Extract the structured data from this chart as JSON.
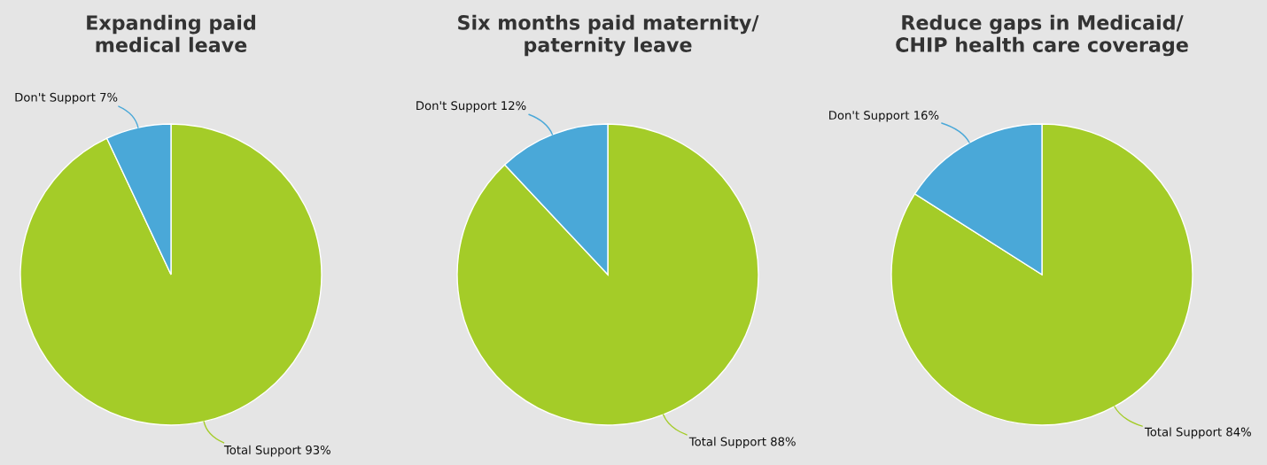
{
  "chart_data": [
    {
      "type": "pie",
      "title": "Expanding paid\nmedical leave",
      "categories": [
        "Total Support",
        "Don't Support"
      ],
      "values": [
        93,
        7
      ],
      "value_labels": [
        "93%",
        "7%"
      ],
      "colors": [
        "#a4cc28",
        "#4aa8d8"
      ]
    },
    {
      "type": "pie",
      "title": "Six months paid maternity/\npaternity leave",
      "categories": [
        "Total Support",
        "Don't Support"
      ],
      "values": [
        88,
        12
      ],
      "value_labels": [
        "88%",
        "12%"
      ],
      "colors": [
        "#a4cc28",
        "#4aa8d8"
      ]
    },
    {
      "type": "pie",
      "title": "Reduce gaps in Medicaid/\nCHIP health care coverage",
      "categories": [
        "Total Support",
        "Don't Support"
      ],
      "values": [
        84,
        16
      ],
      "value_labels": [
        "84%",
        "16%"
      ],
      "colors": [
        "#a4cc28",
        "#4aa8d8"
      ]
    }
  ]
}
